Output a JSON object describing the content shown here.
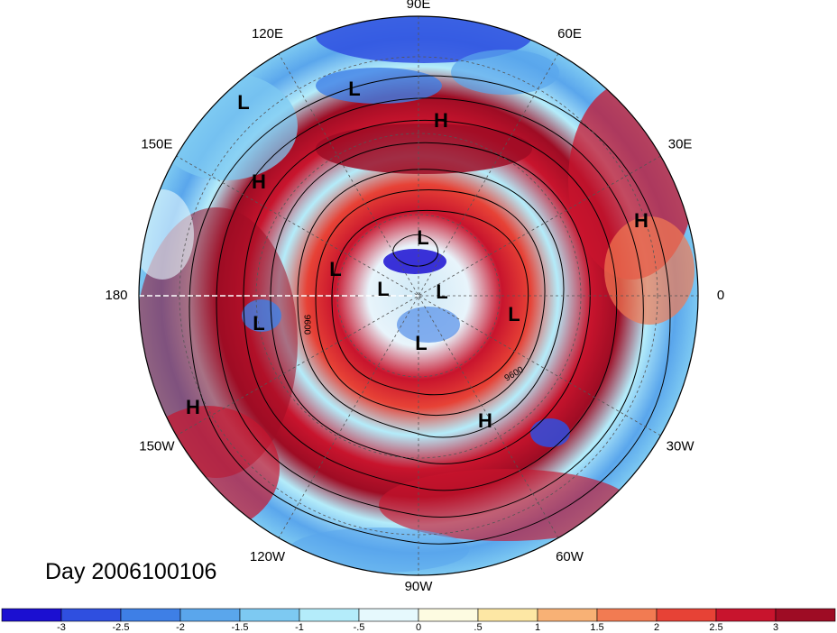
{
  "title": "Day 2006100106",
  "lon_labels": [
    {
      "lon": 90,
      "text": "90E"
    },
    {
      "lon": 60,
      "text": "60E"
    },
    {
      "lon": 30,
      "text": "30E"
    },
    {
      "lon": 0,
      "text": "0"
    },
    {
      "lon": -30,
      "text": "30W"
    },
    {
      "lon": -60,
      "text": "60W"
    },
    {
      "lon": -90,
      "text": "90W"
    },
    {
      "lon": -120,
      "text": "120W"
    },
    {
      "lon": -150,
      "text": "150W"
    },
    {
      "lon": 180,
      "text": "180"
    },
    {
      "lon": 150,
      "text": "150E"
    },
    {
      "lon": 120,
      "text": "120E"
    }
  ],
  "pressure_centers": [
    {
      "type": "L",
      "text": "L"
    },
    {
      "type": "L",
      "text": "L"
    },
    {
      "type": "H",
      "text": "H"
    },
    {
      "type": "H",
      "text": "H"
    },
    {
      "type": "H",
      "text": "H"
    },
    {
      "type": "L",
      "text": "L"
    },
    {
      "type": "L",
      "text": "L"
    },
    {
      "type": "L",
      "text": "L"
    },
    {
      "type": "L",
      "text": "L"
    },
    {
      "type": "L",
      "text": "L"
    },
    {
      "type": "L",
      "text": "L"
    },
    {
      "type": "L",
      "text": "L"
    },
    {
      "type": "H",
      "text": "H"
    },
    {
      "type": "H",
      "text": "H"
    }
  ],
  "contour_labels": [
    {
      "text": "9600"
    },
    {
      "text": "9600"
    }
  ],
  "colorbar": {
    "colors": [
      "#1b0fd1",
      "#2f4fe0",
      "#3e7fe6",
      "#5aa6ec",
      "#7dc9f2",
      "#b4ecfa",
      "#e6f9fd",
      "#fdfbe1",
      "#fde7a4",
      "#f8b175",
      "#f27b52",
      "#e74236",
      "#c8142d",
      "#9e0c24"
    ],
    "tick_labels": [
      "-3",
      "-2.5",
      "-2",
      "-1.5",
      "-1",
      "-.5",
      "0",
      ".5",
      "1",
      "1.5",
      "2",
      "2.5",
      "3"
    ]
  }
}
